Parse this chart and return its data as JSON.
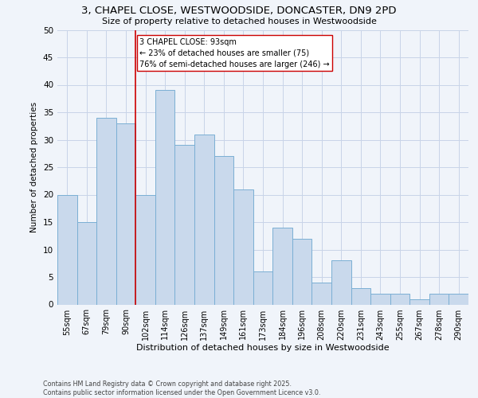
{
  "title_line1": "3, CHAPEL CLOSE, WESTWOODSIDE, DONCASTER, DN9 2PD",
  "title_line2": "Size of property relative to detached houses in Westwoodside",
  "xlabel": "Distribution of detached houses by size in Westwoodside",
  "ylabel": "Number of detached properties",
  "categories": [
    "55sqm",
    "67sqm",
    "79sqm",
    "90sqm",
    "102sqm",
    "114sqm",
    "126sqm",
    "137sqm",
    "149sqm",
    "161sqm",
    "173sqm",
    "184sqm",
    "196sqm",
    "208sqm",
    "220sqm",
    "231sqm",
    "243sqm",
    "255sqm",
    "267sqm",
    "278sqm",
    "290sqm"
  ],
  "values": [
    20,
    15,
    34,
    33,
    20,
    39,
    29,
    31,
    27,
    21,
    6,
    14,
    12,
    4,
    8,
    3,
    2,
    2,
    1,
    2,
    2
  ],
  "bar_color": "#c9d9ec",
  "bar_edge_color": "#7aafd4",
  "vline_x": 3,
  "vline_color": "#cc0000",
  "annotation_text": "3 CHAPEL CLOSE: 93sqm\n← 23% of detached houses are smaller (75)\n76% of semi-detached houses are larger (246) →",
  "annotation_box_color": "#ffffff",
  "annotation_box_edge_color": "#cc0000",
  "ylim": [
    0,
    50
  ],
  "yticks": [
    0,
    5,
    10,
    15,
    20,
    25,
    30,
    35,
    40,
    45,
    50
  ],
  "background_color": "#f0f4fa",
  "plot_bg_color": "#f0f4fa",
  "grid_color": "#c8d4e8",
  "footer_line1": "Contains HM Land Registry data © Crown copyright and database right 2025.",
  "footer_line2": "Contains public sector information licensed under the Open Government Licence v3.0."
}
